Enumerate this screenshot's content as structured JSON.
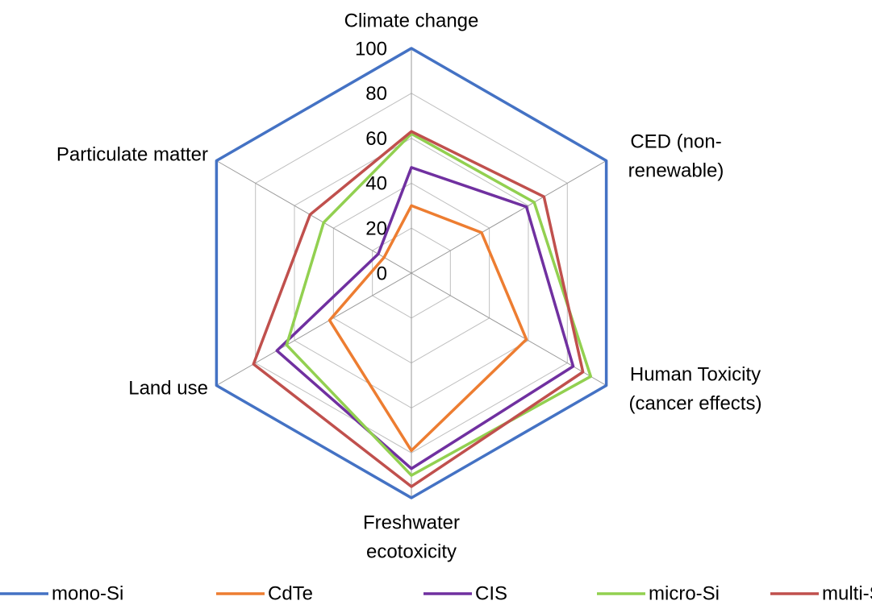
{
  "chart_data": {
    "type": "radar",
    "categories": [
      [
        "Climate change"
      ],
      [
        "CED (non-",
        "renewable)"
      ],
      [
        "Human Toxicity",
        "(cancer effects)"
      ],
      [
        "Freshwater",
        "ecotoxicity"
      ],
      [
        "Land use"
      ],
      [
        "Particulate matter"
      ]
    ],
    "ylim": [
      0,
      100
    ],
    "yticks": [
      0,
      20,
      40,
      60,
      80,
      100
    ],
    "grid": true,
    "legend": "bottom",
    "series": [
      {
        "name": "mono-Si",
        "color": "#4472c4",
        "values": [
          100,
          100,
          100,
          100,
          100,
          100
        ]
      },
      {
        "name": "CdTe",
        "color": "#ed7d31",
        "values": [
          30,
          36,
          59,
          79,
          42,
          14
        ]
      },
      {
        "name": "CIS",
        "color": "#7030a0",
        "values": [
          47,
          59,
          83,
          87,
          69,
          17
        ]
      },
      {
        "name": "micro-Si",
        "color": "#92d050",
        "values": [
          62,
          63,
          92,
          90,
          64,
          45
        ]
      },
      {
        "name": "multi-Si",
        "color": "#c0504d",
        "values": [
          63,
          68,
          88,
          95,
          81,
          52
        ]
      }
    ]
  }
}
